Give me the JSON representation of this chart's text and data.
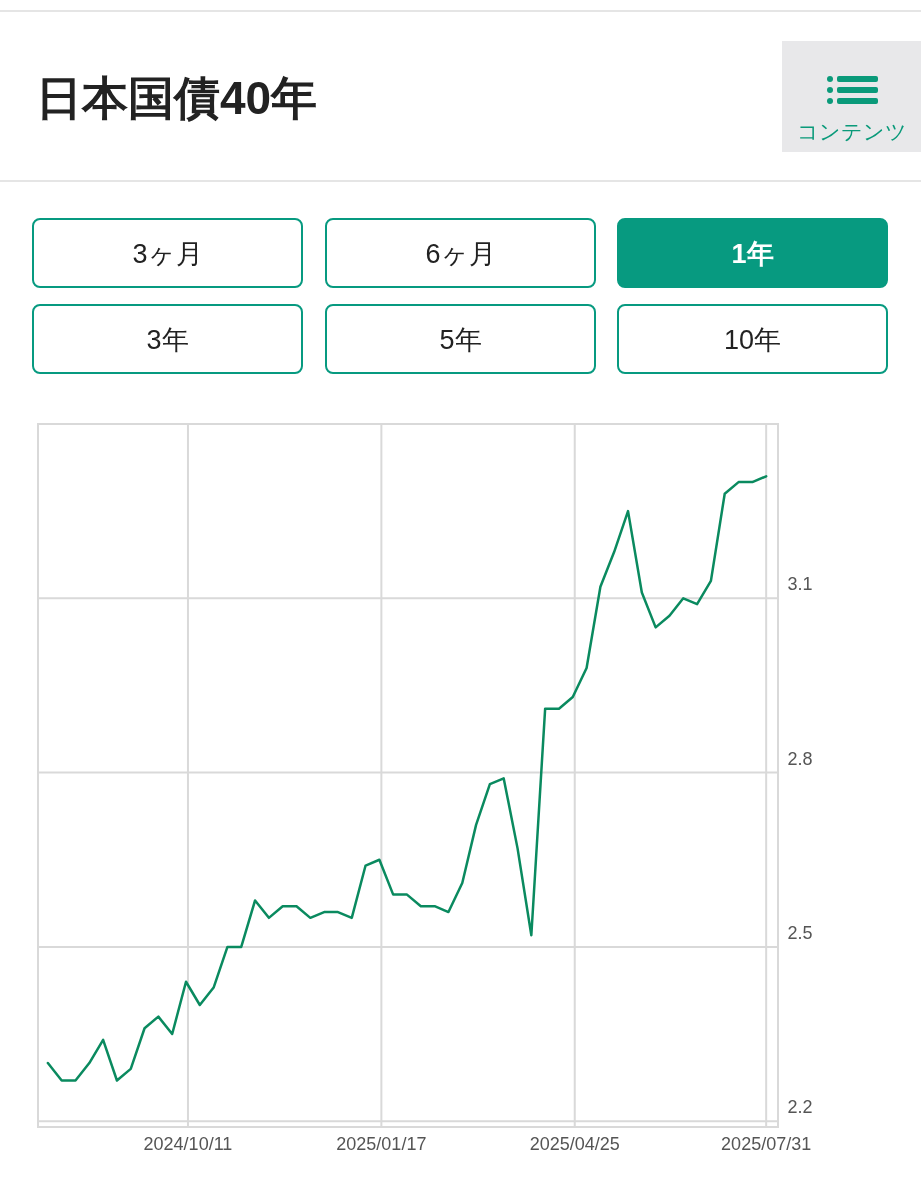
{
  "chart_data": {
    "type": "line",
    "title": "日本国債40年",
    "annotations": [
      "コンテンツ",
      "3ヶ月",
      "6ヶ月",
      "1年",
      "3年",
      "5年",
      "10年"
    ],
    "x": [
      "2024-08-01",
      "2024-08-08",
      "2024-08-15",
      "2024-08-22",
      "2024-08-29",
      "2024-09-05",
      "2024-09-12",
      "2024-09-19",
      "2024-09-26",
      "2024-10-03",
      "2024-10-10",
      "2024-10-17",
      "2024-10-24",
      "2024-10-31",
      "2024-11-07",
      "2024-11-14",
      "2024-11-21",
      "2024-11-28",
      "2024-12-05",
      "2024-12-12",
      "2024-12-19",
      "2024-12-26",
      "2025-01-02",
      "2025-01-09",
      "2025-01-16",
      "2025-01-23",
      "2025-01-30",
      "2025-02-06",
      "2025-02-13",
      "2025-02-20",
      "2025-02-27",
      "2025-03-06",
      "2025-03-13",
      "2025-03-20",
      "2025-03-27",
      "2025-04-03",
      "2025-04-10",
      "2025-04-17",
      "2025-04-24",
      "2025-05-01",
      "2025-05-08",
      "2025-05-15",
      "2025-05-22",
      "2025-05-29",
      "2025-06-05",
      "2025-06-12",
      "2025-06-19",
      "2025-06-26",
      "2025-07-03",
      "2025-07-10",
      "2025-07-17",
      "2025-07-24",
      "2025-07-31"
    ],
    "series": [
      {
        "color": "#0a8a5f",
        "values": [
          2.3,
          2.27,
          2.27,
          2.3,
          2.34,
          2.27,
          2.29,
          2.36,
          2.38,
          2.35,
          2.44,
          2.4,
          2.43,
          2.5,
          2.5,
          2.58,
          2.55,
          2.57,
          2.57,
          2.55,
          2.56,
          2.56,
          2.55,
          2.64,
          2.65,
          2.59,
          2.59,
          2.57,
          2.57,
          2.56,
          2.61,
          2.71,
          2.78,
          2.79,
          2.67,
          2.52,
          2.91,
          2.91,
          2.93,
          2.98,
          3.12,
          3.18,
          3.25,
          3.11,
          3.05,
          3.07,
          3.1,
          3.09,
          3.13,
          3.28,
          3.3,
          3.3,
          3.31
        ]
      }
    ],
    "xlim": [
      "2024-07-27",
      "2025-08-06"
    ],
    "ylim": [
      2.19,
      3.4
    ],
    "xticks": [
      {
        "value": "2024-10-11",
        "label": "2024/10/11"
      },
      {
        "value": "2025-01-17",
        "label": "2025/01/17"
      },
      {
        "value": "2025-04-25",
        "label": "2025/04/25"
      },
      {
        "value": "2025-07-31",
        "label": "2025/07/31"
      }
    ],
    "yticks": [
      2.2,
      2.5,
      2.8,
      3.1
    ],
    "grid": true,
    "marker": "none",
    "line_style": "solid"
  }
}
